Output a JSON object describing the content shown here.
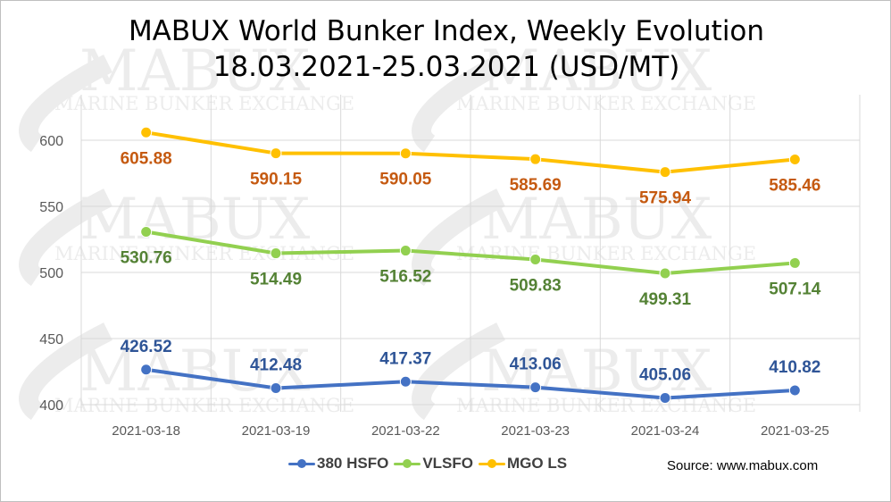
{
  "title_line1": "MABUX World Bunker Index, Weekly Evolution",
  "title_line2": "18.03.2021-25.03.2021 (USD/MT)",
  "watermark": {
    "big": "MABUX",
    "small": "MARINE BUNKER EXCHANGE"
  },
  "source": "Source: www.mabux.com",
  "chart_data": {
    "type": "line",
    "title": "MABUX World Bunker Index, Weekly Evolution 18.03.2021-25.03.2021 (USD/MT)",
    "categories": [
      "2021-03-18",
      "2021-03-19",
      "2021-03-22",
      "2021-03-23",
      "2021-03-24",
      "2021-03-25"
    ],
    "yticks": [
      400,
      450,
      500,
      550,
      600
    ],
    "ylim": [
      395,
      620
    ],
    "grid": true,
    "legend_position": "bottom",
    "series": [
      {
        "name": "380 HSFO",
        "color": "#4472C4",
        "label_color": "#2F5597",
        "label_position": "above",
        "values": [
          426.52,
          412.48,
          417.37,
          413.06,
          405.06,
          410.82
        ]
      },
      {
        "name": "VLSFO",
        "color": "#92D050",
        "label_color": "#548235",
        "label_position": "below",
        "values": [
          530.76,
          514.49,
          516.52,
          509.83,
          499.31,
          507.14
        ]
      },
      {
        "name": "MGO LS",
        "color": "#FFC000",
        "label_color": "#C55A11",
        "label_position": "below",
        "values": [
          605.88,
          590.15,
          590.05,
          585.69,
          575.94,
          585.46
        ]
      }
    ]
  }
}
